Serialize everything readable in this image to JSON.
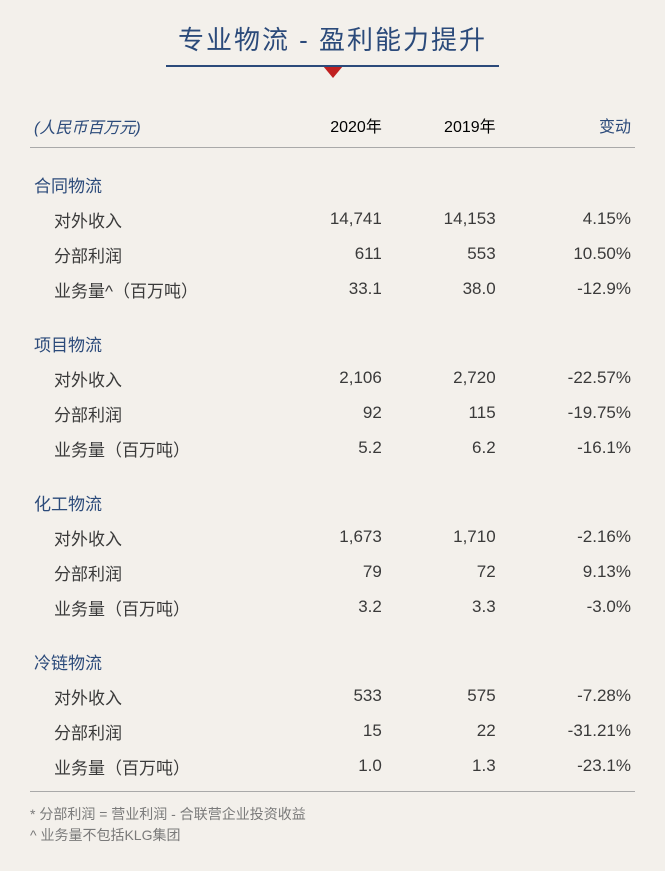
{
  "title": "专业物流 - 盈利能力提升",
  "title_color": "#2b4a7a",
  "title_underline_color": "#2b4a7a",
  "title_fontsize": 26,
  "triangle_color": "#c02020",
  "unit_label": "(人民币百万元)",
  "unit_color": "#2b4a7a",
  "unit_fontsize": 16,
  "change_header_color": "#2b4a7a",
  "body_text_color": "#3a3a3a",
  "section_label_color": "#2b4a7a",
  "rule_color": "#a9a9a9",
  "background_color": "#f3f0eb",
  "footnote_color": "#7a7a7a",
  "footnote_fontsize": 14,
  "body_fontsize": 17,
  "columns": {
    "c0_width_pct": 40,
    "c1_label": "2020年",
    "c2_label": "2019年",
    "c3_label": "变动"
  },
  "sections": [
    {
      "name": "合同物流",
      "rows": [
        {
          "label": "对外收入",
          "y2020": "14,741",
          "y2019": "14,153",
          "change": "4.15%"
        },
        {
          "label": "分部利润",
          "y2020": "611",
          "y2019": "553",
          "change": "10.50%"
        },
        {
          "label": "业务量^（百万吨）",
          "y2020": "33.1",
          "y2019": "38.0",
          "change": "-12.9%"
        }
      ]
    },
    {
      "name": "项目物流",
      "rows": [
        {
          "label": "对外收入",
          "y2020": "2,106",
          "y2019": "2,720",
          "change": "-22.57%"
        },
        {
          "label": "分部利润",
          "y2020": "92",
          "y2019": "115",
          "change": "-19.75%"
        },
        {
          "label": "业务量（百万吨）",
          "y2020": "5.2",
          "y2019": "6.2",
          "change": "-16.1%"
        }
      ]
    },
    {
      "name": "化工物流",
      "rows": [
        {
          "label": "对外收入",
          "y2020": "1,673",
          "y2019": "1,710",
          "change": "-2.16%"
        },
        {
          "label": "分部利润",
          "y2020": "79",
          "y2019": "72",
          "change": "9.13%"
        },
        {
          "label": "业务量（百万吨）",
          "y2020": "3.2",
          "y2019": "3.3",
          "change": "-3.0%"
        }
      ]
    },
    {
      "name": "冷链物流",
      "rows": [
        {
          "label": "对外收入",
          "y2020": "533",
          "y2019": "575",
          "change": "-7.28%"
        },
        {
          "label": "分部利润",
          "y2020": "15",
          "y2019": "22",
          "change": "-31.21%"
        },
        {
          "label": "业务量（百万吨）",
          "y2020": "1.0",
          "y2019": "1.3",
          "change": "-23.1%"
        }
      ]
    }
  ],
  "footnotes": [
    "* 分部利润 = 营业利润 - 合联营企业投资收益",
    "^ 业务量不包括KLG集团"
  ]
}
